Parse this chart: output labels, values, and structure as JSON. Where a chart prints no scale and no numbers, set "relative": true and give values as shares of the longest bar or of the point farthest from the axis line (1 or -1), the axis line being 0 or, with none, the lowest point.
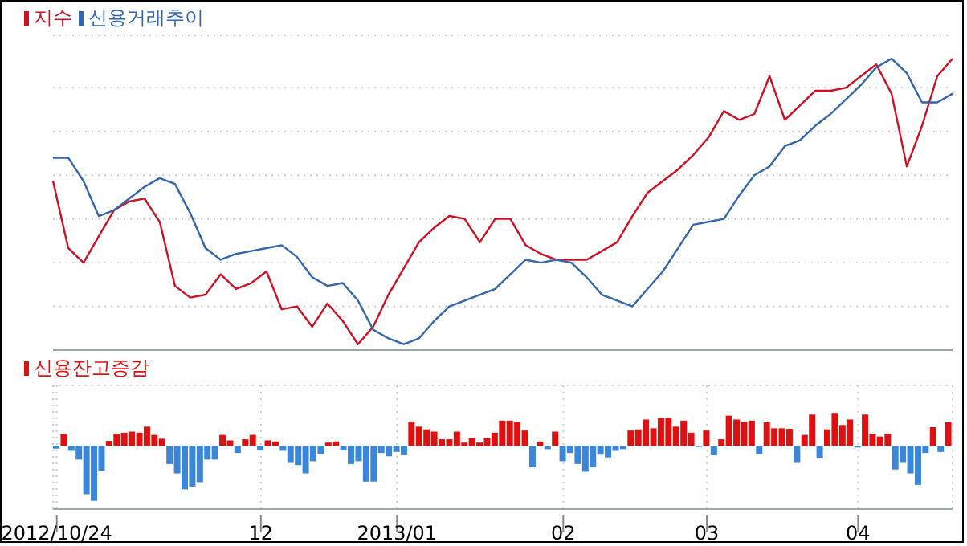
{
  "chart_data": [
    {
      "type": "line",
      "relative": true,
      "legend": "top left",
      "grid": "y",
      "line_style": "solid",
      "categories": [
        null,
        null,
        null,
        null,
        null,
        null,
        null,
        null,
        null,
        null,
        null,
        null,
        null,
        null,
        null,
        null,
        null,
        null,
        null,
        null,
        null,
        null,
        null,
        null,
        null,
        null,
        null,
        null,
        null,
        null,
        null,
        null,
        null,
        null,
        null,
        null,
        null,
        null,
        null,
        null,
        null,
        null,
        null,
        null,
        null,
        null,
        null,
        null,
        null,
        null,
        null,
        null,
        null,
        null,
        null,
        null,
        null,
        null,
        null,
        null
      ],
      "series": [
        {
          "name": "지수",
          "color": "#cc1122",
          "values": [
            0.58,
            0.35,
            0.3,
            0.39,
            0.48,
            0.51,
            0.52,
            0.44,
            0.22,
            0.18,
            0.19,
            0.26,
            0.21,
            0.23,
            0.27,
            0.14,
            0.15,
            0.08,
            0.16,
            0.1,
            0.02,
            0.08,
            0.19,
            0.28,
            0.37,
            0.42,
            0.46,
            0.45,
            0.37,
            0.45,
            0.45,
            0.36,
            0.33,
            0.31,
            0.31,
            0.31,
            0.34,
            0.37,
            0.46,
            0.54,
            0.58,
            0.62,
            0.67,
            0.73,
            0.82,
            0.79,
            0.81,
            0.94,
            0.79,
            0.84,
            0.89,
            0.89,
            0.9,
            0.94,
            0.98,
            0.88,
            0.63,
            0.77,
            0.94,
            1
          ]
        },
        {
          "name": "신용거래추이",
          "color": "#3366aa",
          "values": [
            0.66,
            0.66,
            0.58,
            0.46,
            0.48,
            0.52,
            0.56,
            0.59,
            0.57,
            0.47,
            0.35,
            0.31,
            0.33,
            0.34,
            0.35,
            0.36,
            0.32,
            0.25,
            0.22,
            0.23,
            0.17,
            0.07,
            0.04,
            0.02,
            0.04,
            0.1,
            0.15,
            0.17,
            0.19,
            0.21,
            0.26,
            0.31,
            0.3,
            0.31,
            0.3,
            0.25,
            0.19,
            0.17,
            0.15,
            0.21,
            0.27,
            0.35,
            0.43,
            0.44,
            0.45,
            0.53,
            0.6,
            0.63,
            0.7,
            0.72,
            0.77,
            0.81,
            0.86,
            0.91,
            0.97,
            1,
            0.95,
            0.85,
            0.85,
            0.88
          ]
        }
      ]
    },
    {
      "type": "bar",
      "relative": true,
      "legend": "top left",
      "grid": true,
      "categories": [
        "2012/10/24",
        null,
        null,
        null,
        null,
        null,
        null,
        null,
        null,
        null,
        null,
        null,
        null,
        null,
        null,
        null,
        null,
        null,
        null,
        null,
        null,
        null,
        null,
        null,
        null,
        null,
        null,
        "12",
        null,
        null,
        null,
        null,
        null,
        null,
        null,
        null,
        null,
        null,
        null,
        null,
        null,
        null,
        null,
        null,
        null,
        "2013/01",
        null,
        null,
        null,
        null,
        null,
        null,
        null,
        null,
        null,
        null,
        null,
        null,
        null,
        null,
        null,
        null,
        null,
        null,
        null,
        null,
        null,
        "02",
        null,
        null,
        null,
        null,
        null,
        null,
        null,
        null,
        null,
        null,
        null,
        null,
        null,
        null,
        null,
        null,
        null,
        null,
        "03",
        null,
        null,
        null,
        null,
        null,
        null,
        null,
        null,
        null,
        null,
        null,
        null,
        null,
        null,
        null,
        null,
        null,
        null,
        null,
        "04",
        null,
        null,
        null,
        null,
        null,
        null,
        null,
        null,
        null,
        null,
        null,
        null
      ],
      "series": [
        {
          "name": "신용잔고증감",
          "color": "#dd1111",
          "values": [
            -0.05,
            0.22,
            -0.09,
            -0.25,
            -0.88,
            -1,
            -0.45,
            0.09,
            0.22,
            0.24,
            0.26,
            0.24,
            0.35,
            0.2,
            0.13,
            -0.33,
            -0.5,
            -0.79,
            -0.74,
            -0.66,
            -0.25,
            -0.25,
            0.2,
            0.1,
            -0.13,
            0.12,
            0.2,
            -0.08,
            0.1,
            0.08,
            -0.09,
            -0.31,
            -0.35,
            -0.5,
            -0.28,
            -0.15,
            0.06,
            0.08,
            -0.08,
            -0.33,
            -0.28,
            -0.65,
            -0.65,
            -0.13,
            -0.19,
            -0.11,
            -0.17,
            0.44,
            0.35,
            0.3,
            0.26,
            0.12,
            0.12,
            0.26,
            0.06,
            0.14,
            0.06,
            0.14,
            0.24,
            0.46,
            0.46,
            0.43,
            0.28,
            -0.39,
            0.08,
            -0.06,
            0.26,
            -0.28,
            -0.13,
            -0.33,
            -0.47,
            -0.39,
            -0.16,
            -0.21,
            -0.09,
            -0.06,
            0.28,
            0.3,
            0.48,
            0.32,
            0.51,
            0.51,
            0.35,
            0.46,
            0.24,
            -0.02,
            0.28,
            -0.17,
            0.12,
            0.55,
            0.48,
            0.44,
            0.46,
            -0.15,
            0.43,
            0.32,
            0.32,
            0.31,
            -0.31,
            0.2,
            0.57,
            -0.23,
            0.3,
            0.6,
            0.38,
            0.48,
            -0.03,
            0.57,
            0.22,
            0.17,
            0.22,
            -0.43,
            -0.31,
            -0.5,
            -0.71,
            -0.13,
            0.34,
            -0.11,
            0.43
          ],
          "colors": [
            "#3b86d8",
            "#dd1111",
            "#3b86d8",
            "#3b86d8",
            "#3b86d8",
            "#3b86d8",
            "#3b86d8",
            "#dd1111",
            "#dd1111",
            "#dd1111",
            "#dd1111",
            "#dd1111",
            "#dd1111",
            "#dd1111",
            "#dd1111",
            "#3b86d8",
            "#3b86d8",
            "#3b86d8",
            "#3b86d8",
            "#3b86d8",
            "#3b86d8",
            "#3b86d8",
            "#dd1111",
            "#dd1111",
            "#3b86d8",
            "#dd1111",
            "#dd1111",
            "#3b86d8",
            "#dd1111",
            "#dd1111",
            "#3b86d8",
            "#3b86d8",
            "#3b86d8",
            "#3b86d8",
            "#3b86d8",
            "#3b86d8",
            "#dd1111",
            "#dd1111",
            "#3b86d8",
            "#3b86d8",
            "#3b86d8",
            "#3b86d8",
            "#3b86d8",
            "#3b86d8",
            "#3b86d8",
            "#3b86d8",
            "#3b86d8",
            "#dd1111",
            "#dd1111",
            "#dd1111",
            "#dd1111",
            "#dd1111",
            "#dd1111",
            "#dd1111",
            "#dd1111",
            "#dd1111",
            "#dd1111",
            "#dd1111",
            "#dd1111",
            "#dd1111",
            "#dd1111",
            "#dd1111",
            "#dd1111",
            "#3b86d8",
            "#dd1111",
            "#3b86d8",
            "#dd1111",
            "#3b86d8",
            "#3b86d8",
            "#3b86d8",
            "#3b86d8",
            "#3b86d8",
            "#3b86d8",
            "#3b86d8",
            "#3b86d8",
            "#3b86d8",
            "#dd1111",
            "#dd1111",
            "#dd1111",
            "#dd1111",
            "#dd1111",
            "#dd1111",
            "#dd1111",
            "#dd1111",
            "#dd1111",
            "#3b86d8",
            "#dd1111",
            "#3b86d8",
            "#dd1111",
            "#dd1111",
            "#dd1111",
            "#dd1111",
            "#dd1111",
            "#3b86d8",
            "#dd1111",
            "#dd1111",
            "#dd1111",
            "#dd1111",
            "#3b86d8",
            "#dd1111",
            "#dd1111",
            "#3b86d8",
            "#dd1111",
            "#dd1111",
            "#dd1111",
            "#dd1111",
            "#3b86d8",
            "#dd1111",
            "#dd1111",
            "#dd1111",
            "#dd1111",
            "#3b86d8",
            "#3b86d8",
            "#3b86d8",
            "#3b86d8",
            "#3b86d8",
            "#dd1111",
            "#3b86d8",
            "#dd1111"
          ]
        }
      ]
    }
  ]
}
